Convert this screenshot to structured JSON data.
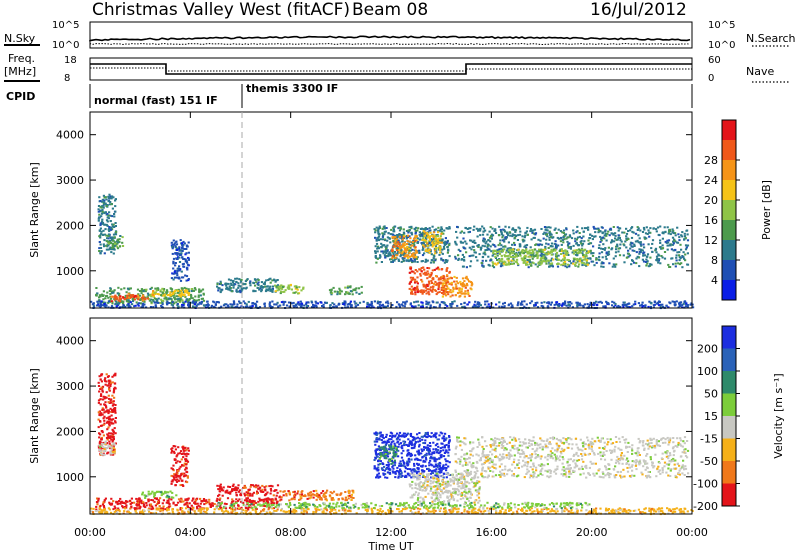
{
  "header": {
    "title": "Christmas Valley West (fitACF)",
    "beam": "Beam 08",
    "date": "16/Jul/2012"
  },
  "top_panels": {
    "nsky_label": "N.Sky",
    "nsearch_label": "N.Search",
    "nsky_ticks": [
      "10^5",
      "10^0"
    ],
    "nsearch_ticks": [
      "10^5",
      "10^0"
    ],
    "freq_label_line1": "Freq.",
    "freq_label_line2": "[MHz]",
    "freq_ticks": [
      "18",
      "8"
    ],
    "nave_label": "Nave",
    "nave_ticks": [
      "60",
      "0"
    ],
    "cpid_label": "CPID",
    "cpid_modes": [
      {
        "text": "normal (fast) 151 IF",
        "start_hour": 0,
        "end_hour": 6
      },
      {
        "text": "themis 3300 IF",
        "start_hour": 6,
        "end_hour": 24
      }
    ]
  },
  "chart_data": [
    {
      "type": "heatmap",
      "name": "power",
      "ylabel": "Slant Range [km]",
      "yticks": [
        "1000",
        "2000",
        "3000",
        "4000"
      ],
      "ylim": [
        180,
        4500
      ],
      "xlim": [
        0,
        24
      ],
      "colorbar": {
        "label": "Power [dB]",
        "ticks": [
          "4",
          "8",
          "12",
          "16",
          "20",
          "24",
          "28"
        ],
        "colors": [
          "#0a1ee6",
          "#1f4fb4",
          "#2c7a8c",
          "#4c9a4c",
          "#8fc447",
          "#f5c318",
          "#f59418",
          "#f0581a",
          "#e4141a"
        ]
      },
      "regions": [
        {
          "t0": 0.3,
          "t1": 1.0,
          "r0": 1400,
          "r1": 2700,
          "level": 2
        },
        {
          "t0": 0.6,
          "t1": 1.3,
          "r0": 1500,
          "r1": 1800,
          "level": 3
        },
        {
          "t0": 0.2,
          "t1": 4.5,
          "r0": 300,
          "r1": 650,
          "level": 3
        },
        {
          "t0": 0.8,
          "t1": 2.3,
          "r0": 350,
          "r1": 520,
          "level": 7
        },
        {
          "t0": 2.3,
          "t1": 4.0,
          "r0": 450,
          "r1": 600,
          "level": 5
        },
        {
          "t0": 3.2,
          "t1": 3.9,
          "r0": 800,
          "r1": 1700,
          "level": 1
        },
        {
          "t0": 5.0,
          "t1": 7.5,
          "r0": 550,
          "r1": 850,
          "level": 2
        },
        {
          "t0": 7.3,
          "t1": 8.5,
          "r0": 520,
          "r1": 720,
          "level": 4
        },
        {
          "t0": 9.5,
          "t1": 10.8,
          "r0": 500,
          "r1": 680,
          "level": 3
        },
        {
          "t0": 11.3,
          "t1": 14.3,
          "r0": 1200,
          "r1": 2000,
          "level": 2
        },
        {
          "t0": 12.0,
          "t1": 13.0,
          "r0": 1300,
          "r1": 1800,
          "level": 6
        },
        {
          "t0": 13.2,
          "t1": 14.0,
          "r0": 1400,
          "r1": 1900,
          "level": 5
        },
        {
          "t0": 12.7,
          "t1": 14.3,
          "r0": 500,
          "r1": 1100,
          "level": 7
        },
        {
          "t0": 14.0,
          "t1": 15.2,
          "r0": 450,
          "r1": 900,
          "level": 6
        },
        {
          "t0": 14.5,
          "t1": 23.8,
          "r0": 1100,
          "r1": 2000,
          "level": 2
        },
        {
          "t0": 16.0,
          "t1": 20.0,
          "r0": 1150,
          "r1": 1500,
          "level": 4
        },
        {
          "t0": 0.0,
          "t1": 24.0,
          "r0": 200,
          "r1": 350,
          "level": 1
        }
      ]
    },
    {
      "type": "heatmap",
      "name": "velocity",
      "xlabel": "Time UT",
      "xticks": [
        "00:00",
        "04:00",
        "08:00",
        "12:00",
        "16:00",
        "20:00",
        "00:00"
      ],
      "ylabel": "Slant Range [km]",
      "yticks": [
        "1000",
        "2000",
        "3000",
        "4000"
      ],
      "ylim": [
        180,
        4500
      ],
      "xlim": [
        0,
        24
      ],
      "colorbar": {
        "label": "Velocity [m s⁻¹]",
        "ticks": [
          "200",
          "100",
          "50",
          "15",
          "-15",
          "-50",
          "-100",
          "-200"
        ],
        "colors": [
          "#1c2ee0",
          "#2a62b8",
          "#2e8a6a",
          "#7ccd3a",
          "#c8c8c2",
          "#f5b018",
          "#f0781a",
          "#e4141a"
        ]
      },
      "regions": [
        {
          "t0": 0.3,
          "t1": 1.0,
          "r0": 1500,
          "r1": 3300,
          "level": 7
        },
        {
          "t0": 0.3,
          "t1": 1.0,
          "r0": 1500,
          "r1": 1800,
          "level": 4
        },
        {
          "t0": 0.2,
          "t1": 7.5,
          "r0": 300,
          "r1": 550,
          "level": 7
        },
        {
          "t0": 2.0,
          "t1": 3.5,
          "r0": 550,
          "r1": 700,
          "level": 3
        },
        {
          "t0": 3.2,
          "t1": 3.9,
          "r0": 800,
          "r1": 1700,
          "level": 7
        },
        {
          "t0": 5.0,
          "t1": 7.5,
          "r0": 600,
          "r1": 850,
          "level": 7
        },
        {
          "t0": 7.5,
          "t1": 10.5,
          "r0": 500,
          "r1": 720,
          "level": 6
        },
        {
          "t0": 11.3,
          "t1": 14.3,
          "r0": 1000,
          "r1": 2000,
          "level": 0
        },
        {
          "t0": 11.5,
          "t1": 12.2,
          "r0": 1300,
          "r1": 1700,
          "level": 2
        },
        {
          "t0": 12.7,
          "t1": 15.5,
          "r0": 450,
          "r1": 1100,
          "level": 4
        },
        {
          "t0": 14.5,
          "t1": 23.8,
          "r0": 1000,
          "r1": 1900,
          "level": 4
        },
        {
          "t0": 0.0,
          "t1": 24.0,
          "r0": 200,
          "r1": 330,
          "level": 5
        },
        {
          "t0": 5.0,
          "t1": 20.0,
          "r0": 330,
          "r1": 450,
          "level": 3
        }
      ]
    }
  ]
}
